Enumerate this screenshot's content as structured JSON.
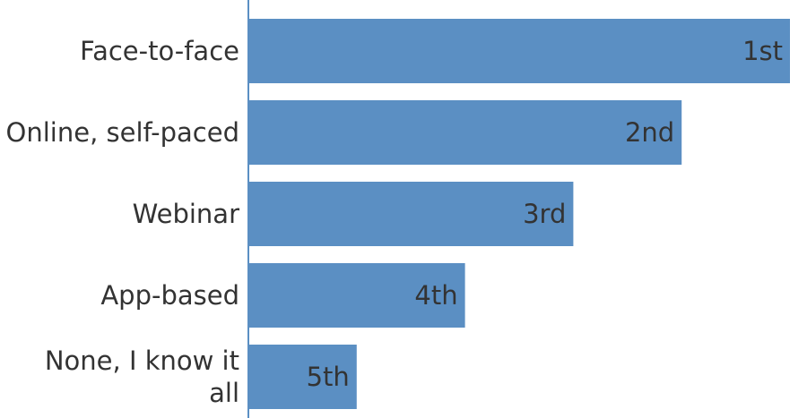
{
  "chart_data": {
    "type": "bar",
    "orientation": "horizontal",
    "categories": [
      "Face-to-face",
      "Online, self-paced",
      "Webinar",
      "App-based",
      "None, I know it all"
    ],
    "category_lines": [
      [
        "Face-to-face"
      ],
      [
        "Online, self-paced"
      ],
      [
        "Webinar"
      ],
      [
        "App-based"
      ],
      [
        "None, I know it",
        "all"
      ]
    ],
    "values": [
      5,
      4,
      3,
      2,
      1
    ],
    "value_labels": [
      "1st",
      "2nd",
      "3rd",
      "4th",
      "5th"
    ],
    "xlim": [
      0,
      5
    ],
    "bar_color": "#5b8fc3",
    "text_color": "#333333",
    "grid": false,
    "legend": "none"
  }
}
